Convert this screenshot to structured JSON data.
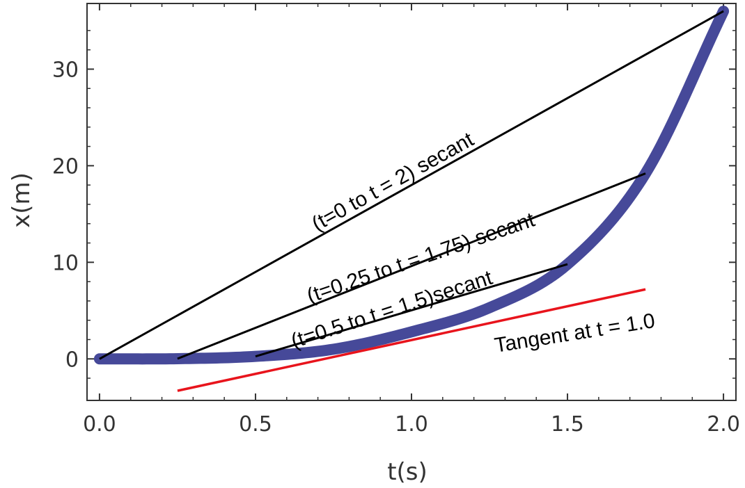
{
  "chart_data": {
    "type": "line",
    "title": "",
    "xlabel": "t(s)",
    "ylabel": "x(m)",
    "xlim": [
      -0.04,
      2.04
    ],
    "ylim": [
      -4.3,
      36.8
    ],
    "grid": false,
    "x_ticks": [
      0.0,
      0.5,
      1.0,
      1.5,
      2.0
    ],
    "x_tick_labels": [
      "0.0",
      "0.5",
      "1.0",
      "1.5",
      "2.0"
    ],
    "y_ticks": [
      0,
      10,
      20,
      30
    ],
    "y_tick_labels": [
      "0",
      "10",
      "20",
      "30"
    ],
    "curve": {
      "color": "#3c3f94",
      "x": [
        0.0,
        0.25,
        0.5,
        0.75,
        1.0,
        1.25,
        1.5,
        1.75,
        2.0
      ],
      "y": [
        0.0,
        0.02,
        0.26,
        1.0,
        2.8,
        5.3,
        9.8,
        19.2,
        36.0
      ]
    },
    "secants": [
      {
        "label": "(t=0 to t = 2) secant",
        "color": "#000000",
        "x": [
          0.0,
          2.0
        ],
        "y": [
          0.0,
          36.0
        ]
      },
      {
        "label": "(t=0.25 to t = 1.75) secant",
        "color": "#000000",
        "x": [
          0.25,
          1.75
        ],
        "y": [
          0.02,
          19.2
        ]
      },
      {
        "label": "(t=0.5 to t = 1.5)secant",
        "color": "#000000",
        "x": [
          0.5,
          1.5
        ],
        "y": [
          0.26,
          9.8
        ]
      }
    ],
    "tangent": {
      "label": "Tangent at t = 1.0",
      "color": "#e8141c",
      "x": [
        0.25,
        1.75
      ],
      "y": [
        -3.3,
        7.2
      ]
    }
  }
}
